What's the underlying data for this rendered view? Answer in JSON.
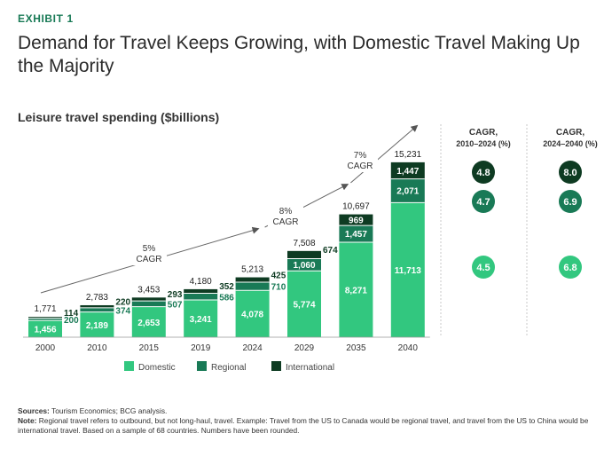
{
  "header": {
    "exhibit": "EXHIBIT 1",
    "title": "Demand for Travel Keeps Growing, with Domestic Travel Making Up the Majority",
    "subtitle": "Leisure travel spending ($billions)"
  },
  "chart_data": {
    "type": "bar",
    "stacked": true,
    "categories": [
      "2000",
      "2010",
      "2015",
      "2019",
      "2024",
      "2029",
      "2035",
      "2040"
    ],
    "series": [
      {
        "name": "Domestic",
        "color": "#32c77f",
        "values": [
          1456,
          2189,
          2653,
          3241,
          4078,
          5774,
          8271,
          11713
        ]
      },
      {
        "name": "Regional",
        "color": "#197a56",
        "values": [
          200,
          374,
          507,
          586,
          710,
          1060,
          1457,
          2071
        ]
      },
      {
        "name": "International",
        "color": "#0e3b22",
        "values": [
          114,
          220,
          293,
          352,
          425,
          674,
          969,
          1447
        ]
      }
    ],
    "totals": [
      1771,
      2783,
      3453,
      4180,
      5213,
      7508,
      10697,
      15231
    ],
    "value_labels": {
      "domestic": [
        "1,456",
        "2,189",
        "2,653",
        "3,241",
        "4,078",
        "5,774",
        "8,271",
        "11,713"
      ],
      "regional": [
        "200",
        "374",
        "507",
        "586",
        "710",
        "1,060",
        "1,457",
        "2,071"
      ],
      "international": [
        "114",
        "220",
        "293",
        "352",
        "425",
        "674",
        "969",
        "1,447"
      ],
      "totals": [
        "1,771",
        "2,783",
        "3,453",
        "4,180",
        "5,213",
        "7,508",
        "10,697",
        "15,231"
      ]
    },
    "ylim": [
      0,
      17000
    ],
    "grid": false,
    "legend_position": "bottom",
    "cagr_arrows": [
      {
        "pct": "5%",
        "label": "CAGR"
      },
      {
        "pct": "8%",
        "label": "CAGR"
      },
      {
        "pct": "7%",
        "label": "CAGR"
      }
    ],
    "cagr_table": {
      "columns": [
        {
          "heading_line1": "CAGR,",
          "heading_line2": "2010–2024 (%)"
        },
        {
          "heading_line1": "CAGR,",
          "heading_line2": "2024–2040 (%)"
        }
      ],
      "rows": [
        {
          "series": "International",
          "values": [
            "4.8",
            "8.0"
          ]
        },
        {
          "series": "Regional",
          "values": [
            "4.7",
            "6.9"
          ]
        },
        {
          "series": "Domestic",
          "values": [
            "4.5",
            "6.8"
          ]
        }
      ]
    }
  },
  "footer": {
    "sources_label": "Sources:",
    "sources_text": " Tourism Economics; BCG analysis.",
    "note_label": "Note:",
    "note_text": " Regional travel refers to outbound, but not long-haul, travel. Example: Travel from the US to Canada would be regional travel, and travel from the US to China would be international travel. Based on a sample of 68 countries. Numbers have been rounded."
  }
}
